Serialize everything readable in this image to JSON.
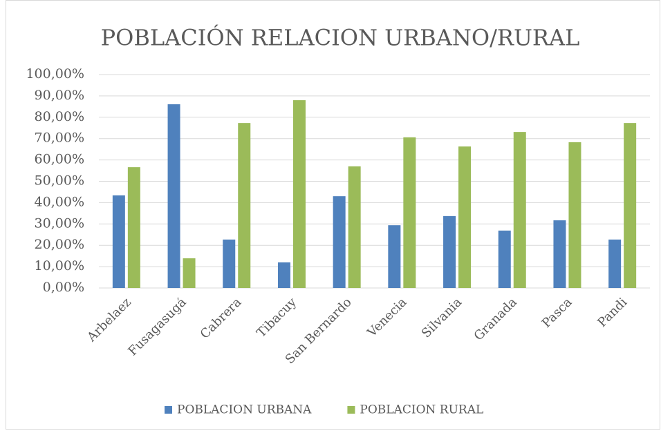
{
  "chart_data": {
    "type": "bar",
    "title": "POBLACIÓN RELACION URBANO/RURAL",
    "categories": [
      "Arbelaez",
      "Fusagasugá",
      "Cabrera",
      "Tibacuy",
      "San Bernardo",
      "Venecia",
      "Silvania",
      "Granada",
      "Pasca",
      "Pandi"
    ],
    "series": [
      {
        "name": "POBLACION URBANA",
        "color": "#4f81bd",
        "values": [
          43.4,
          86.1,
          22.7,
          12.0,
          43.0,
          29.4,
          33.7,
          26.9,
          31.7,
          22.7
        ]
      },
      {
        "name": "POBLACION RURAL",
        "color": "#9bbb59",
        "values": [
          56.6,
          13.9,
          77.3,
          88.0,
          57.0,
          70.6,
          66.3,
          73.1,
          68.3,
          77.3
        ]
      }
    ],
    "ylim": [
      0,
      100
    ],
    "yticks": [
      {
        "value": 0,
        "label": "0,00%"
      },
      {
        "value": 10,
        "label": "10,00%"
      },
      {
        "value": 20,
        "label": "20,00%"
      },
      {
        "value": 30,
        "label": "30,00%"
      },
      {
        "value": 40,
        "label": "40,00%"
      },
      {
        "value": 50,
        "label": "50,00%"
      },
      {
        "value": 60,
        "label": "60,00%"
      },
      {
        "value": 70,
        "label": "70,00%"
      },
      {
        "value": 80,
        "label": "80,00%"
      },
      {
        "value": 90,
        "label": "90,00%"
      },
      {
        "value": 100,
        "label": "100,00%"
      }
    ],
    "grid": true,
    "legend": "bottom"
  }
}
